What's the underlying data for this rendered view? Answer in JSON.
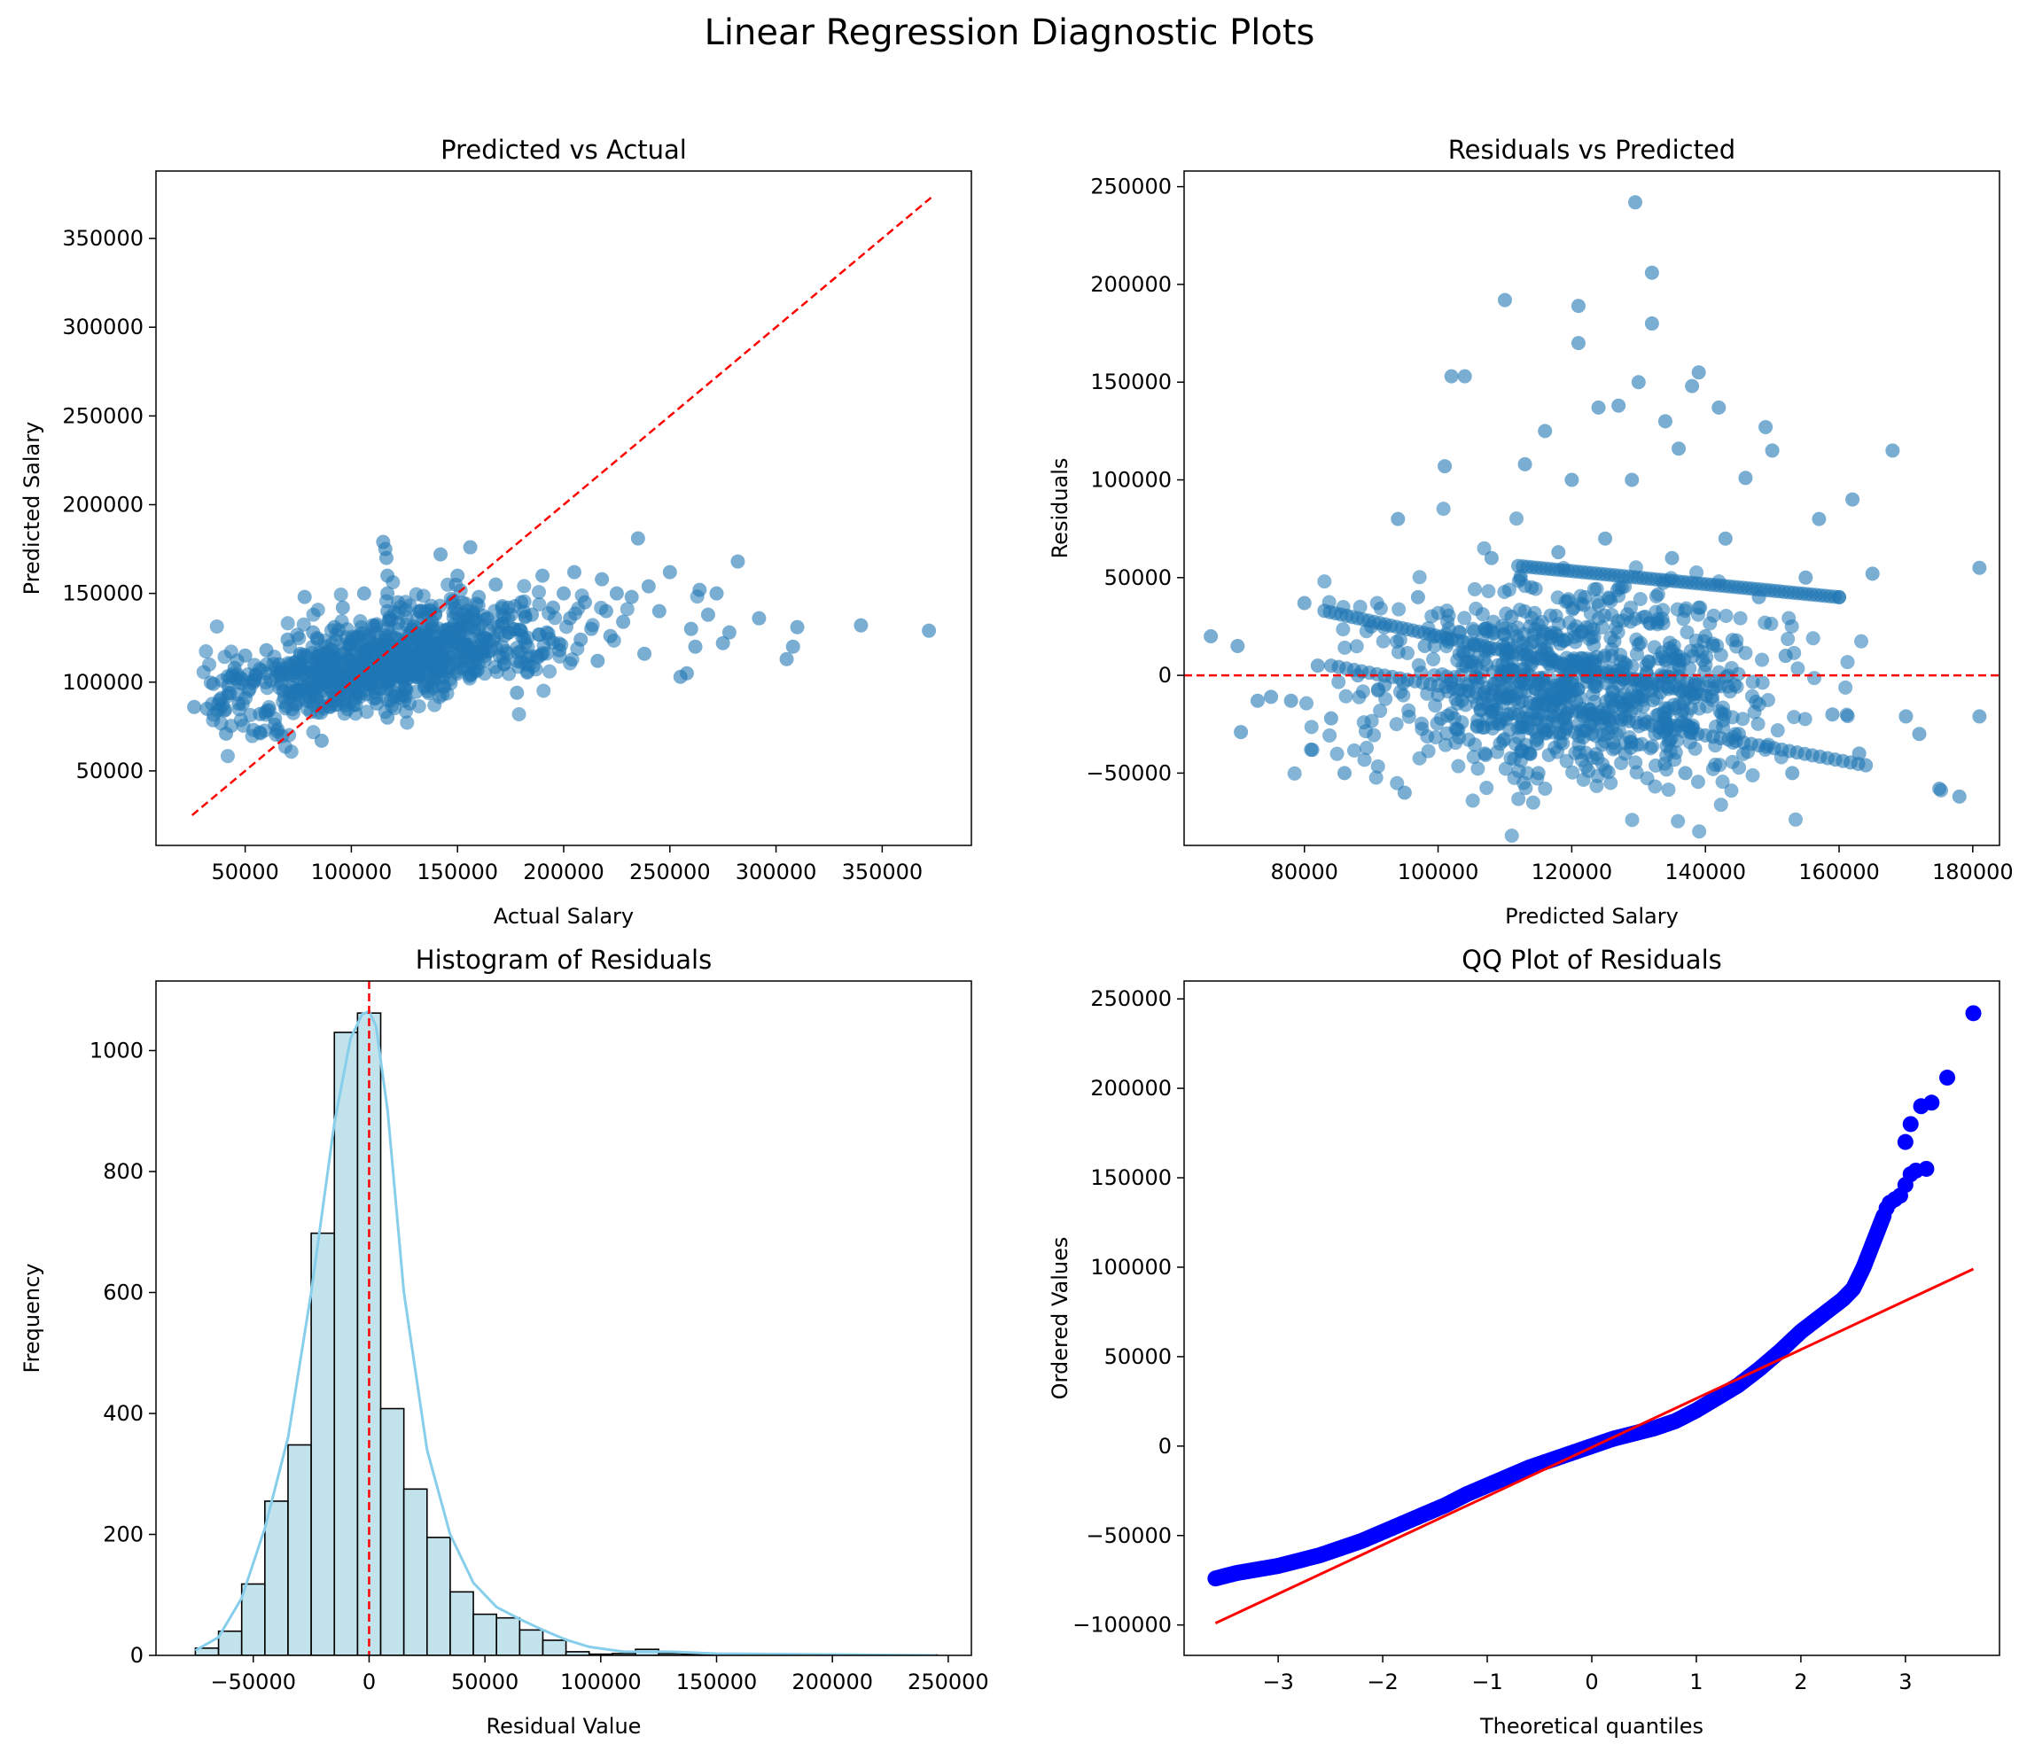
{
  "suptitle": "Linear Regression Diagnostic Plots",
  "colors": {
    "scatter": "#1f77b4",
    "reference_line": "#ff0000",
    "hist_fill": "#add8e6",
    "kde": "#87ceeb",
    "qq_points": "#0000ff",
    "qq_line": "#ff0000"
  },
  "chart_data": [
    {
      "type": "scatter",
      "title": "Predicted vs Actual",
      "xlabel": "Actual Salary",
      "ylabel": "Predicted Salary",
      "xlim": [
        8000,
        392000
      ],
      "ylim": [
        8000,
        388000
      ],
      "xticks": [
        50000,
        100000,
        150000,
        200000,
        250000,
        300000,
        350000
      ],
      "yticks": [
        50000,
        100000,
        150000,
        200000,
        250000,
        300000,
        350000
      ],
      "reference_line": {
        "style": "dashed",
        "x": [
          25000,
          373000
        ],
        "y": [
          25000,
          373000
        ]
      },
      "points": [
        [
          26000,
          86000
        ],
        [
          32000,
          85000
        ],
        [
          35000,
          99000
        ],
        [
          38000,
          90000
        ],
        [
          41000,
          71000
        ],
        [
          42000,
          98000
        ],
        [
          45000,
          108000
        ],
        [
          47000,
          88000
        ],
        [
          50000,
          115000
        ],
        [
          52000,
          96000
        ],
        [
          55000,
          104000
        ],
        [
          57000,
          82000
        ],
        [
          60000,
          118000
        ],
        [
          62000,
          101000
        ],
        [
          64000,
          76000
        ],
        [
          66000,
          110000
        ],
        [
          68000,
          95000
        ],
        [
          70000,
          124000
        ],
        [
          72000,
          104000
        ],
        [
          74000,
          88000
        ],
        [
          76000,
          116000
        ],
        [
          78000,
          148000
        ],
        [
          80000,
          100000
        ],
        [
          82000,
          128000
        ],
        [
          84000,
          110000
        ],
        [
          86000,
          67000
        ],
        [
          88000,
          120000
        ],
        [
          90000,
          86000
        ],
        [
          92000,
          131000
        ],
        [
          94000,
          108000
        ],
        [
          96000,
          142000
        ],
        [
          98000,
          94000
        ],
        [
          100000,
          115000
        ],
        [
          102000,
          125000
        ],
        [
          104000,
          100000
        ],
        [
          106000,
          150000
        ],
        [
          108000,
          110000
        ],
        [
          110000,
          132000
        ],
        [
          112000,
          88000
        ],
        [
          114000,
          121000
        ],
        [
          115000,
          179000
        ],
        [
          116000,
          175000
        ],
        [
          116500,
          170000
        ],
        [
          117000,
          160000
        ],
        [
          117000,
          150000
        ],
        [
          117000,
          140000
        ],
        [
          117000,
          130000
        ],
        [
          117000,
          120000
        ],
        [
          117000,
          110000
        ],
        [
          117000,
          100000
        ],
        [
          117000,
          90000
        ],
        [
          117000,
          80000
        ],
        [
          118000,
          135000
        ],
        [
          120000,
          104000
        ],
        [
          122000,
          145000
        ],
        [
          124000,
          118000
        ],
        [
          126000,
          96000
        ],
        [
          128000,
          128000
        ],
        [
          130000,
          112000
        ],
        [
          132000,
          140000
        ],
        [
          134000,
          122000
        ],
        [
          136000,
          100000
        ],
        [
          138000,
          134000
        ],
        [
          140000,
          118000
        ],
        [
          142000,
          172000
        ],
        [
          144000,
          126000
        ],
        [
          146000,
          108000
        ],
        [
          148000,
          146000
        ],
        [
          150000,
          160000
        ],
        [
          152000,
          130000
        ],
        [
          154000,
          114000
        ],
        [
          156000,
          176000
        ],
        [
          158000,
          135000
        ],
        [
          160000,
          148000
        ],
        [
          162000,
          120000
        ],
        [
          164000,
          136000
        ],
        [
          166000,
          118000
        ],
        [
          168000,
          155000
        ],
        [
          170000,
          128000
        ],
        [
          172000,
          110000
        ],
        [
          174000,
          142000
        ],
        [
          176000,
          130000
        ],
        [
          178000,
          94000
        ],
        [
          180000,
          145000
        ],
        [
          182000,
          122000
        ],
        [
          185000,
          138000
        ],
        [
          188000,
          114000
        ],
        [
          190000,
          160000
        ],
        [
          192000,
          128000
        ],
        [
          195000,
          142000
        ],
        [
          198000,
          118000
        ],
        [
          200000,
          150000
        ],
        [
          203000,
          136000
        ],
        [
          205000,
          162000
        ],
        [
          208000,
          124000
        ],
        [
          210000,
          145000
        ],
        [
          213000,
          130000
        ],
        [
          216000,
          112000
        ],
        [
          218000,
          158000
        ],
        [
          220000,
          140000
        ],
        [
          222000,
          126000
        ],
        [
          225000,
          150000
        ],
        [
          228000,
          134000
        ],
        [
          232000,
          148000
        ],
        [
          235000,
          181000
        ],
        [
          238000,
          116000
        ],
        [
          240000,
          154000
        ],
        [
          245000,
          140000
        ],
        [
          250000,
          162000
        ],
        [
          255000,
          103000
        ],
        [
          258000,
          105000
        ],
        [
          260000,
          130000
        ],
        [
          262000,
          120000
        ],
        [
          264000,
          152000
        ],
        [
          268000,
          138000
        ],
        [
          272000,
          150000
        ],
        [
          275000,
          122000
        ],
        [
          278000,
          128000
        ],
        [
          282000,
          168000
        ],
        [
          292000,
          136000
        ],
        [
          305000,
          113000
        ],
        [
          308000,
          120000
        ],
        [
          310000,
          131000
        ],
        [
          340000,
          132000
        ],
        [
          372000,
          129000
        ]
      ]
    },
    {
      "type": "scatter",
      "title": "Residuals vs Predicted",
      "xlabel": "Predicted Salary",
      "ylabel": "Residuals",
      "xlim": [
        62000,
        184000
      ],
      "ylim": [
        -87000,
        258000
      ],
      "xticks": [
        80000,
        100000,
        120000,
        140000,
        160000,
        180000
      ],
      "yticks": [
        -50000,
        0,
        50000,
        100000,
        150000,
        200000,
        250000
      ],
      "reference_line": {
        "style": "dashed",
        "y": 0
      },
      "points": [
        [
          66000,
          20000
        ],
        [
          70000,
          15000
        ],
        [
          70500,
          -29000
        ],
        [
          73000,
          -13000
        ],
        [
          75000,
          -11000
        ],
        [
          78000,
          -13000
        ],
        [
          80000,
          37000
        ],
        [
          81000,
          -38000
        ],
        [
          82000,
          5000
        ],
        [
          84000,
          -22000
        ],
        [
          86000,
          -50000
        ],
        [
          88000,
          0
        ],
        [
          90000,
          25000
        ],
        [
          92000,
          -5000
        ],
        [
          94000,
          80000
        ],
        [
          95000,
          -60000
        ],
        [
          97000,
          40000
        ],
        [
          98000,
          15000
        ],
        [
          100000,
          -10000
        ],
        [
          101000,
          107000
        ],
        [
          102000,
          153000
        ],
        [
          104000,
          153000
        ],
        [
          105000,
          5000
        ],
        [
          107000,
          -40000
        ],
        [
          108000,
          60000
        ],
        [
          110000,
          192000
        ],
        [
          111000,
          30000
        ],
        [
          112000,
          -20000
        ],
        [
          113000,
          108000
        ],
        [
          114000,
          45000
        ],
        [
          115000,
          -50000
        ],
        [
          116000,
          125000
        ],
        [
          117000,
          20000
        ],
        [
          118000,
          63000
        ],
        [
          119000,
          -10000
        ],
        [
          120000,
          100000
        ],
        [
          121000,
          189000
        ],
        [
          121000,
          170000
        ],
        [
          122000,
          40000
        ],
        [
          123000,
          -30000
        ],
        [
          124000,
          137000
        ],
        [
          125000,
          70000
        ],
        [
          126000,
          10000
        ],
        [
          127000,
          138000
        ],
        [
          128000,
          -40000
        ],
        [
          129000,
          100000
        ],
        [
          129500,
          242000
        ],
        [
          130000,
          150000
        ],
        [
          131000,
          30000
        ],
        [
          132000,
          206000
        ],
        [
          132000,
          180000
        ],
        [
          133000,
          -20000
        ],
        [
          134000,
          130000
        ],
        [
          135000,
          60000
        ],
        [
          136000,
          116000
        ],
        [
          137000,
          -50000
        ],
        [
          138000,
          148000
        ],
        [
          139000,
          155000
        ],
        [
          140000,
          20000
        ],
        [
          142000,
          137000
        ],
        [
          143000,
          70000
        ],
        [
          145000,
          -30000
        ],
        [
          146000,
          101000
        ],
        [
          148000,
          40000
        ],
        [
          149000,
          127000
        ],
        [
          150000,
          115000
        ],
        [
          152000,
          10000
        ],
        [
          153000,
          -50000
        ],
        [
          155000,
          50000
        ],
        [
          157000,
          80000
        ],
        [
          159000,
          -20000
        ],
        [
          160000,
          40000
        ],
        [
          162000,
          90000
        ],
        [
          163000,
          -40000
        ],
        [
          165000,
          52000
        ],
        [
          168000,
          115000
        ],
        [
          170000,
          -21000
        ],
        [
          172000,
          -30000
        ],
        [
          175000,
          -58000
        ],
        [
          178000,
          -62000
        ],
        [
          181000,
          55000
        ],
        [
          181000,
          -21000
        ]
      ],
      "bands": [
        {
          "from": [
            83000,
            33000
          ],
          "to": [
            141000,
            -11000
          ]
        },
        {
          "from": [
            84000,
            5000
          ],
          "to": [
            164000,
            -46000
          ]
        },
        {
          "from": [
            112000,
            56000
          ],
          "to": [
            160000,
            40000
          ]
        }
      ]
    },
    {
      "type": "histogram",
      "title": "Histogram of Residuals",
      "xlabel": "Residual Value",
      "ylabel": "Frequency",
      "xlim": [
        -92000,
        260000
      ],
      "ylim": [
        0,
        1115
      ],
      "xticks": [
        -50000,
        0,
        50000,
        100000,
        150000,
        200000,
        250000
      ],
      "yticks": [
        0,
        200,
        400,
        600,
        800,
        1000
      ],
      "bin_start": -75000,
      "bin_width": 10000,
      "counts": [
        12,
        40,
        118,
        255,
        348,
        698,
        1030,
        1062,
        408,
        275,
        195,
        105,
        68,
        62,
        42,
        25,
        6,
        2,
        3,
        10,
        3,
        2,
        1,
        0,
        0,
        0,
        1,
        1,
        0,
        0,
        0,
        1
      ],
      "kde": {
        "x": [
          -75000,
          -65000,
          -55000,
          -45000,
          -35000,
          -25000,
          -15000,
          -8000,
          -3000,
          0,
          3000,
          8000,
          15000,
          25000,
          35000,
          45000,
          55000,
          65000,
          75000,
          85000,
          95000,
          110000,
          130000,
          150000,
          180000,
          210000,
          245000
        ],
        "y": [
          8,
          30,
          95,
          210,
          360,
          600,
          880,
          1020,
          1060,
          1065,
          1040,
          900,
          600,
          340,
          200,
          120,
          80,
          60,
          42,
          26,
          14,
          6,
          6,
          3,
          2,
          1,
          0
        ]
      },
      "reference_line": {
        "style": "dashed",
        "x": 0
      }
    },
    {
      "type": "scatter",
      "title": "QQ Plot of Residuals",
      "xlabel": "Theoretical quantiles",
      "ylabel": "Ordered Values",
      "xlim": [
        -3.9,
        3.9
      ],
      "ylim": [
        -117000,
        260000
      ],
      "xticks": [
        -3,
        -2,
        -1,
        0,
        1,
        2,
        3
      ],
      "yticks": [
        -100000,
        -50000,
        0,
        50000,
        100000,
        150000,
        200000,
        250000
      ],
      "fit_line": {
        "x": [
          -3.6,
          3.65
        ],
        "y": [
          -99000,
          99000
        ]
      },
      "curve": {
        "x": [
          -3.6,
          -3.4,
          -3.2,
          -3.0,
          -2.8,
          -2.6,
          -2.4,
          -2.2,
          -2.0,
          -1.8,
          -1.6,
          -1.4,
          -1.2,
          -1.0,
          -0.8,
          -0.6,
          -0.4,
          -0.2,
          0.0,
          0.2,
          0.4,
          0.6,
          0.8,
          1.0,
          1.2,
          1.4,
          1.6,
          1.8,
          2.0,
          2.2,
          2.4,
          2.5,
          2.6,
          2.7,
          2.8
        ],
        "y": [
          -74000,
          -71000,
          -69000,
          -67000,
          -64000,
          -61000,
          -57000,
          -53000,
          -48000,
          -43000,
          -38000,
          -33000,
          -27000,
          -22000,
          -17000,
          -12000,
          -8000,
          -4000,
          0,
          4000,
          7000,
          10000,
          14000,
          20000,
          27000,
          34000,
          43000,
          53000,
          64000,
          73000,
          82000,
          88000,
          100000,
          115000,
          130000
        ]
      },
      "tail_points": [
        [
          2.82,
          133000
        ],
        [
          2.85,
          136000
        ],
        [
          2.9,
          138000
        ],
        [
          2.95,
          140000
        ],
        [
          3.0,
          146000
        ],
        [
          3.05,
          152000
        ],
        [
          3.1,
          154000
        ],
        [
          3.2,
          155000
        ],
        [
          3.0,
          170000
        ],
        [
          3.05,
          180000
        ],
        [
          3.15,
          190000
        ],
        [
          3.25,
          192000
        ],
        [
          3.4,
          206000
        ],
        [
          3.65,
          242000
        ]
      ]
    }
  ]
}
